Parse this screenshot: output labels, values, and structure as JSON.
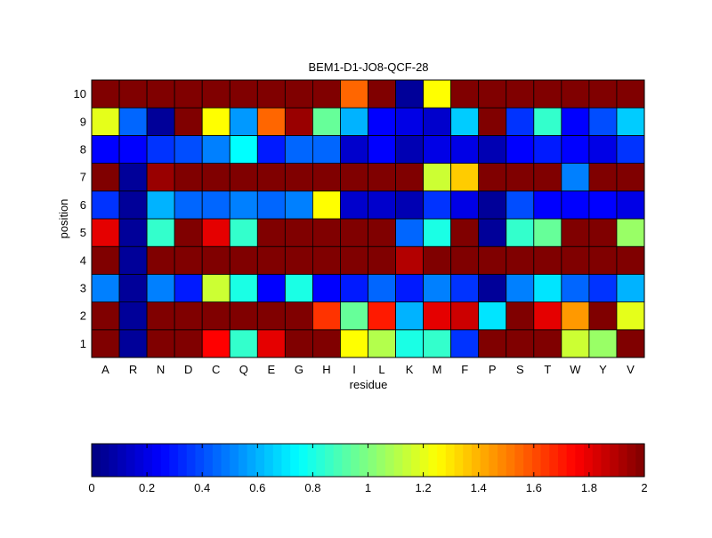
{
  "chart_data": {
    "type": "heatmap",
    "title": "BEM1-D1-JO8-QCF-28",
    "xlabel": "residue",
    "ylabel": "position",
    "x_categories": [
      "A",
      "R",
      "N",
      "D",
      "C",
      "Q",
      "E",
      "G",
      "H",
      "I",
      "L",
      "K",
      "M",
      "F",
      "P",
      "S",
      "T",
      "W",
      "Y",
      "V"
    ],
    "y_categories": [
      "1",
      "2",
      "3",
      "4",
      "5",
      "6",
      "7",
      "8",
      "9",
      "10"
    ],
    "values": [
      [
        2.0,
        0.05,
        2.0,
        2.0,
        1.75,
        0.85,
        1.8,
        2.0,
        2.0,
        1.25,
        1.1,
        0.8,
        0.85,
        0.35,
        2.0,
        2.0,
        2.0,
        1.15,
        1.05,
        2.0
      ],
      [
        2.0,
        0.05,
        2.0,
        2.0,
        2.0,
        2.0,
        2.0,
        2.0,
        1.65,
        0.95,
        1.7,
        0.6,
        1.8,
        1.85,
        0.7,
        2.0,
        1.8,
        1.45,
        2.0,
        1.2
      ],
      [
        0.5,
        0.05,
        0.5,
        0.3,
        1.15,
        0.8,
        0.25,
        0.8,
        0.25,
        0.3,
        0.45,
        0.3,
        0.5,
        0.35,
        0.05,
        0.5,
        0.7,
        0.45,
        0.35,
        0.6
      ],
      [
        2.0,
        0.05,
        2.0,
        2.0,
        2.0,
        2.0,
        2.0,
        2.0,
        2.0,
        2.0,
        2.0,
        1.9,
        2.0,
        2.0,
        2.0,
        2.0,
        2.0,
        2.0,
        2.0,
        2.0
      ],
      [
        1.8,
        0.05,
        0.85,
        2.0,
        1.8,
        0.85,
        2.0,
        2.0,
        2.0,
        2.0,
        2.0,
        0.45,
        0.8,
        2.0,
        0.05,
        0.85,
        0.95,
        2.0,
        2.0,
        1.05
      ],
      [
        0.35,
        0.05,
        0.6,
        0.45,
        0.45,
        0.5,
        0.45,
        0.5,
        1.25,
        0.15,
        0.15,
        0.1,
        0.35,
        0.2,
        0.05,
        0.4,
        0.25,
        0.25,
        0.25,
        0.2
      ],
      [
        2.0,
        0.05,
        1.95,
        2.0,
        2.0,
        2.0,
        2.0,
        2.0,
        2.0,
        2.0,
        2.0,
        2.0,
        1.15,
        1.35,
        2.0,
        2.0,
        2.0,
        0.5,
        2.0,
        2.0
      ],
      [
        0.25,
        0.25,
        0.35,
        0.4,
        0.5,
        0.75,
        0.3,
        0.45,
        0.45,
        0.15,
        0.25,
        0.1,
        0.2,
        0.2,
        0.1,
        0.25,
        0.3,
        0.25,
        0.2,
        0.35
      ],
      [
        1.2,
        0.45,
        0.05,
        2.0,
        1.25,
        0.55,
        1.55,
        1.95,
        0.95,
        0.6,
        0.25,
        0.2,
        0.15,
        0.65,
        2.0,
        0.35,
        0.85,
        0.25,
        0.4,
        0.65
      ],
      [
        2.0,
        2.0,
        2.0,
        2.0,
        2.0,
        2.0,
        2.0,
        2.0,
        2.0,
        1.55,
        2.0,
        0.05,
        1.25,
        2.0,
        2.0,
        2.0,
        2.0,
        2.0,
        2.0,
        2.0
      ]
    ],
    "colorbar": {
      "min": 0,
      "max": 2,
      "ticks": [
        "0",
        "0.2",
        "0.4",
        "0.6",
        "0.8",
        "1",
        "1.2",
        "1.4",
        "1.6",
        "1.8",
        "2"
      ],
      "colormap": "jet",
      "steps": 64,
      "orientation": "horizontal"
    },
    "grid": false
  }
}
